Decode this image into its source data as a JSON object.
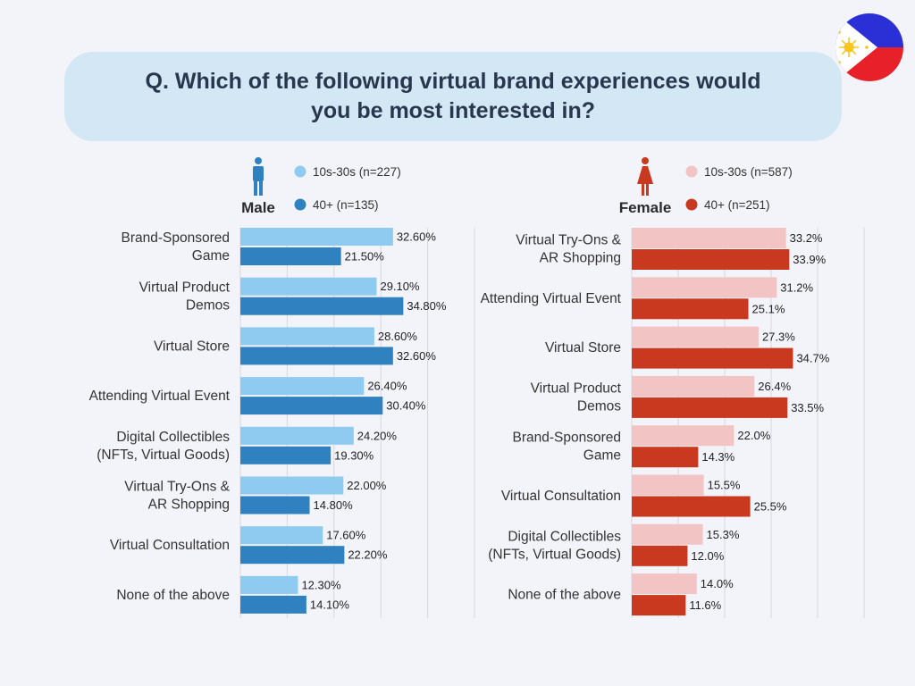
{
  "title": {
    "line1": "Q. Which of the following virtual brand experiences would",
    "line2": "you be most interested in?"
  },
  "flag_icon": "philippines-flag-icon",
  "colors": {
    "male_young": "#8fcaf0",
    "male_old": "#2f82bf",
    "female_young": "#f2c4c4",
    "female_old": "#c8391f",
    "male_icon": "#2f82bf",
    "female_icon": "#c8391f",
    "title_bg": "#d3e7f5",
    "gridline": "#d6d8de"
  },
  "chart_data": [
    {
      "type": "bar",
      "orientation": "horizontal",
      "gender_label": "Male",
      "gender_icon": "male-person-icon",
      "categories": [
        [
          "Brand-Sponsored",
          "Game"
        ],
        [
          "Virtual Product",
          "Demos"
        ],
        [
          "Virtual Store"
        ],
        [
          "Attending Virtual Event"
        ],
        [
          "Digital Collectibles",
          "(NFTs, Virtual Goods)"
        ],
        [
          "Virtual Try-Ons &",
          "AR Shopping"
        ],
        [
          "Virtual Consultation"
        ],
        [
          "None of the above"
        ]
      ],
      "series": [
        {
          "name": "10s-30s (n=227)",
          "values": [
            32.6,
            29.1,
            28.6,
            26.4,
            24.2,
            22.0,
            17.6,
            12.3
          ],
          "labels": [
            "32.60%",
            "29.10%",
            "28.60%",
            "26.40%",
            "24.20%",
            "22.00%",
            "17.60%",
            "12.30%"
          ]
        },
        {
          "name": "40+ (n=135)",
          "values": [
            21.5,
            34.8,
            32.6,
            30.4,
            19.3,
            14.8,
            22.2,
            14.1
          ],
          "labels": [
            "21.50%",
            "34.80%",
            "32.60%",
            "30.40%",
            "19.30%",
            "14.80%",
            "22.20%",
            "14.10%"
          ]
        }
      ],
      "xlim": [
        0,
        50
      ],
      "grid": true
    },
    {
      "type": "bar",
      "orientation": "horizontal",
      "gender_label": "Female",
      "gender_icon": "female-person-icon",
      "categories": [
        [
          "Virtual Try-Ons &",
          "AR Shopping"
        ],
        [
          "Attending Virtual Event"
        ],
        [
          "Virtual Store"
        ],
        [
          "Virtual Product",
          "Demos"
        ],
        [
          "Brand-Sponsored",
          "Game"
        ],
        [
          "Virtual Consultation"
        ],
        [
          "Digital Collectibles",
          "(NFTs, Virtual Goods)"
        ],
        [
          "None of the above"
        ]
      ],
      "series": [
        {
          "name": "10s-30s (n=587)",
          "values": [
            33.2,
            31.2,
            27.3,
            26.4,
            22.0,
            15.5,
            15.3,
            14.0
          ],
          "labels": [
            "33.2%",
            "31.2%",
            "27.3%",
            "26.4%",
            "22.0%",
            "15.5%",
            "15.3%",
            "14.0%"
          ]
        },
        {
          "name": "40+ (n=251)",
          "values": [
            33.9,
            25.1,
            34.7,
            33.5,
            14.3,
            25.5,
            12.0,
            11.6
          ],
          "labels": [
            "33.9%",
            "25.1%",
            "34.7%",
            "33.5%",
            "14.3%",
            "25.5%",
            "12.0%",
            "11.6%"
          ]
        }
      ],
      "xlim": [
        0,
        50
      ],
      "grid": true
    }
  ]
}
